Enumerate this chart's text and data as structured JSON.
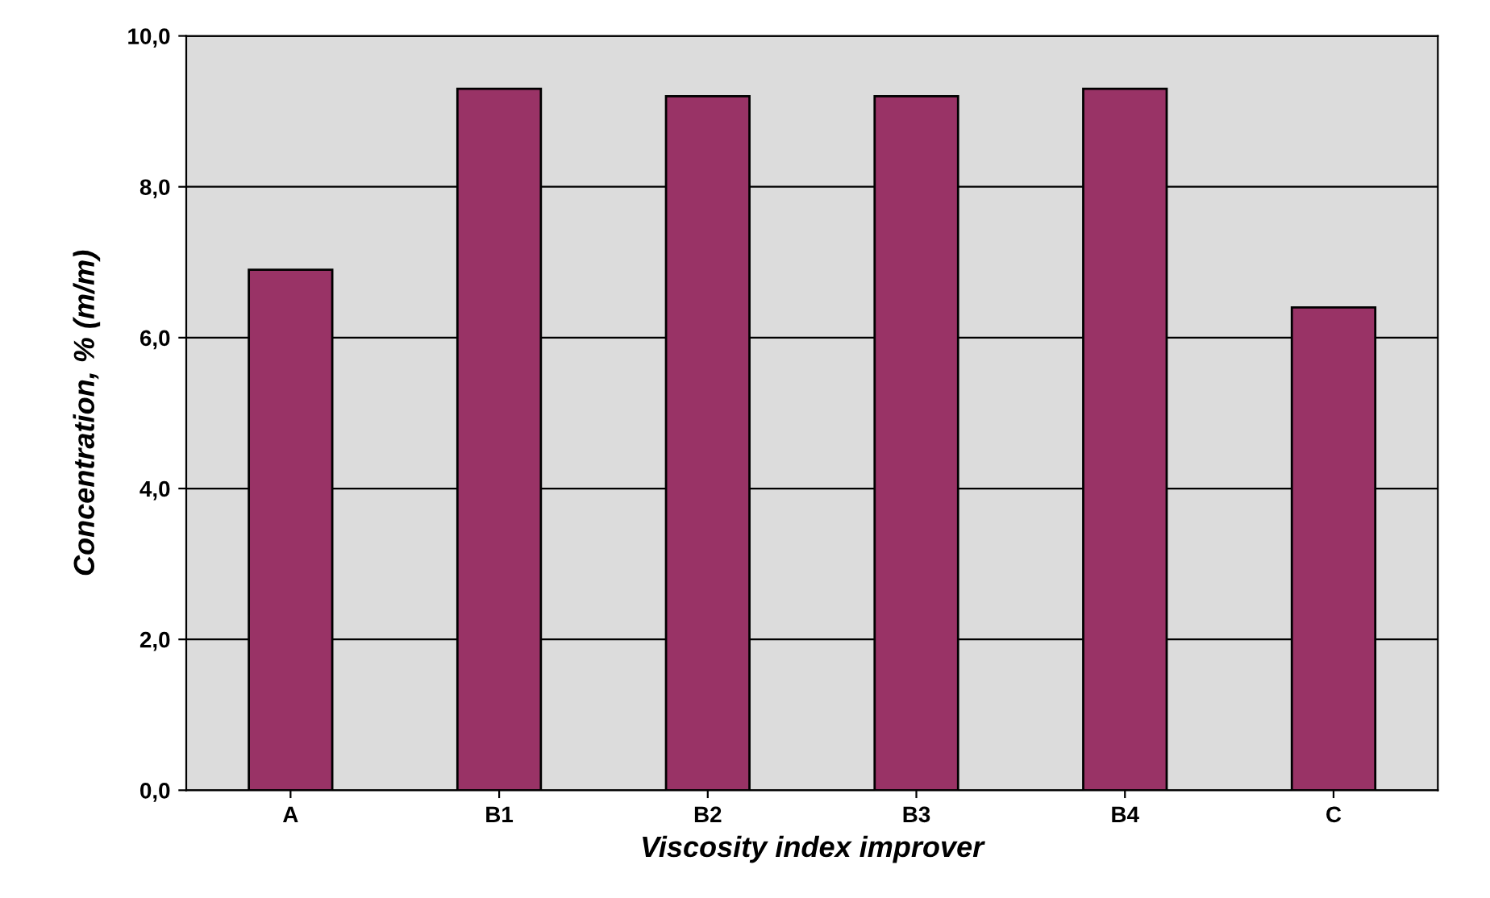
{
  "chart_data": {
    "type": "bar",
    "xlabel": "Viscosity index improver",
    "ylabel": "Concentration, % (m/m)",
    "categories": [
      "A",
      "B1",
      "B2",
      "B3",
      "B4",
      "C"
    ],
    "values": [
      6.9,
      9.3,
      9.2,
      9.2,
      9.3,
      6.4
    ],
    "color": "#993366",
    "ylim": [
      0,
      10
    ],
    "yticks": [
      {
        "value": 0,
        "label": "0,0"
      },
      {
        "value": 2,
        "label": "2,0"
      },
      {
        "value": 4,
        "label": "4,0"
      },
      {
        "value": 6,
        "label": "6,0"
      },
      {
        "value": 8,
        "label": "8,0"
      },
      {
        "value": 10,
        "label": "10,0"
      }
    ],
    "grid": "y"
  }
}
